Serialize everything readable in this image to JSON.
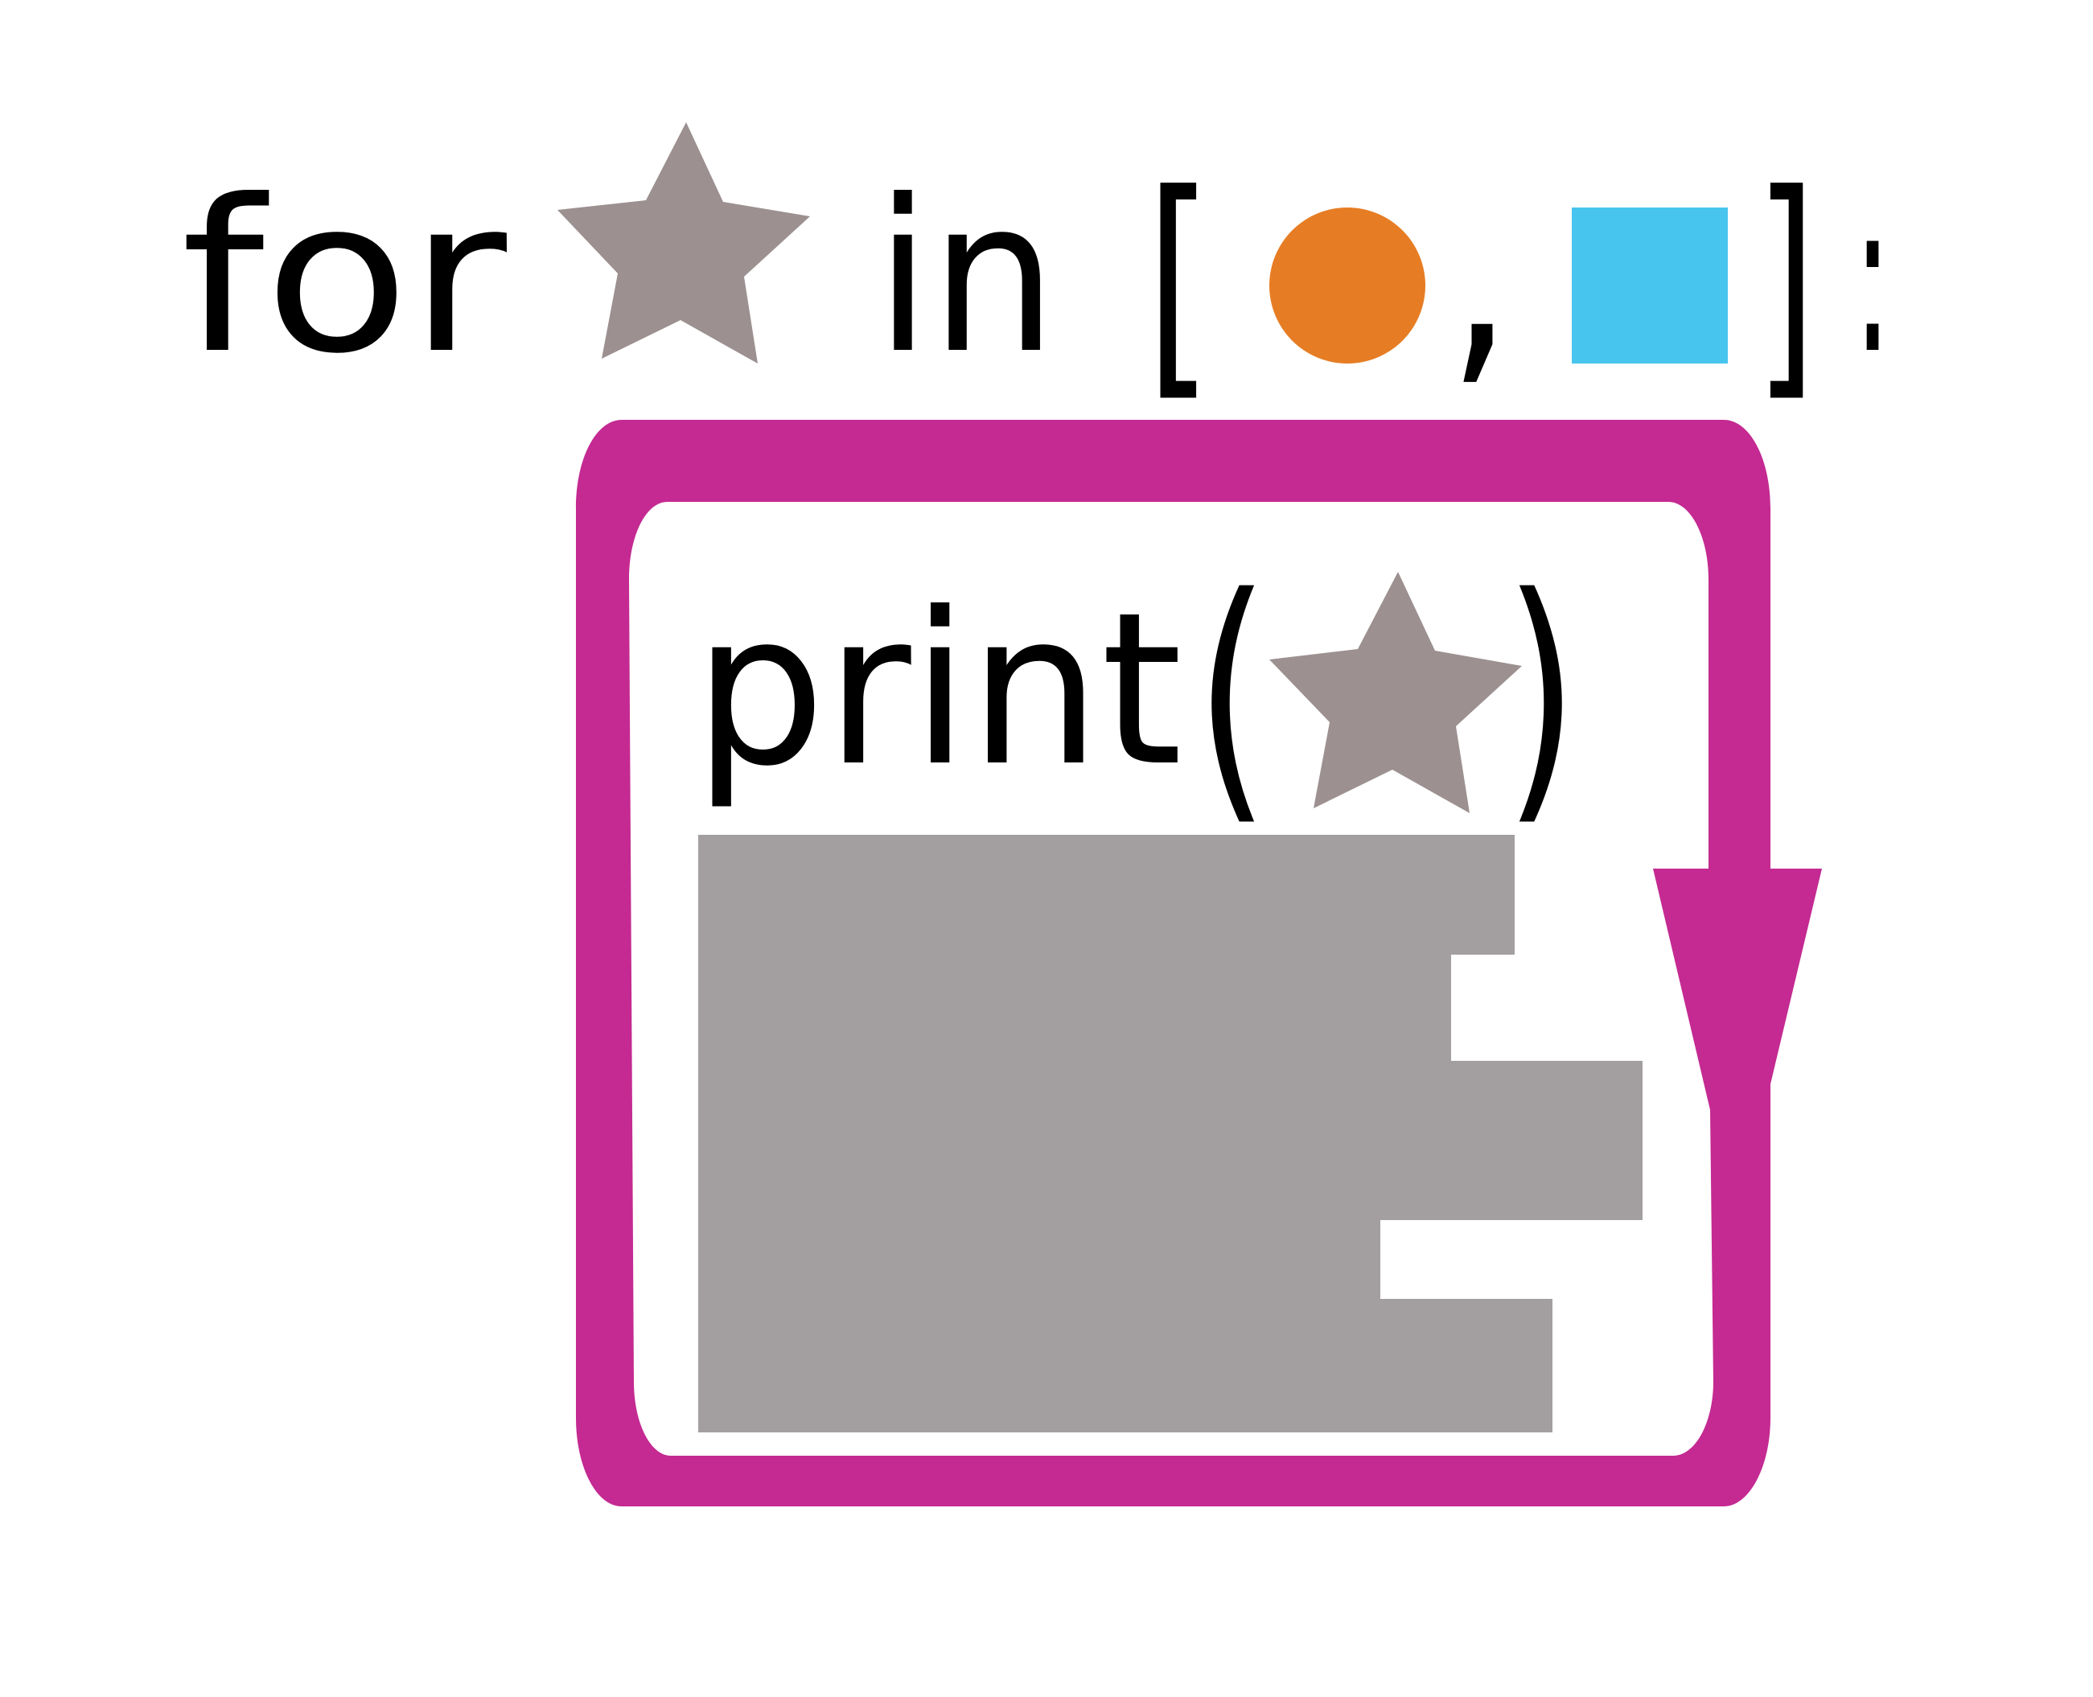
{
  "header": {
    "keyword_for": "for",
    "keyword_in": "in",
    "bracket_open": "[",
    "comma": ",",
    "bracket_close": "]",
    "colon": ":"
  },
  "body": {
    "function_name": "print",
    "paren_open": "(",
    "paren_close": ")"
  },
  "symbols": {
    "loop_variable": "star-icon",
    "items": [
      "circle-icon",
      "square-icon"
    ],
    "printed_argument": "star-icon"
  },
  "colors": {
    "star": "#9c9091",
    "circle": "#e67d24",
    "square": "#48c5ef",
    "loop_frame": "#c42a92",
    "output_area": "#a39fa0",
    "text": "#000000"
  }
}
